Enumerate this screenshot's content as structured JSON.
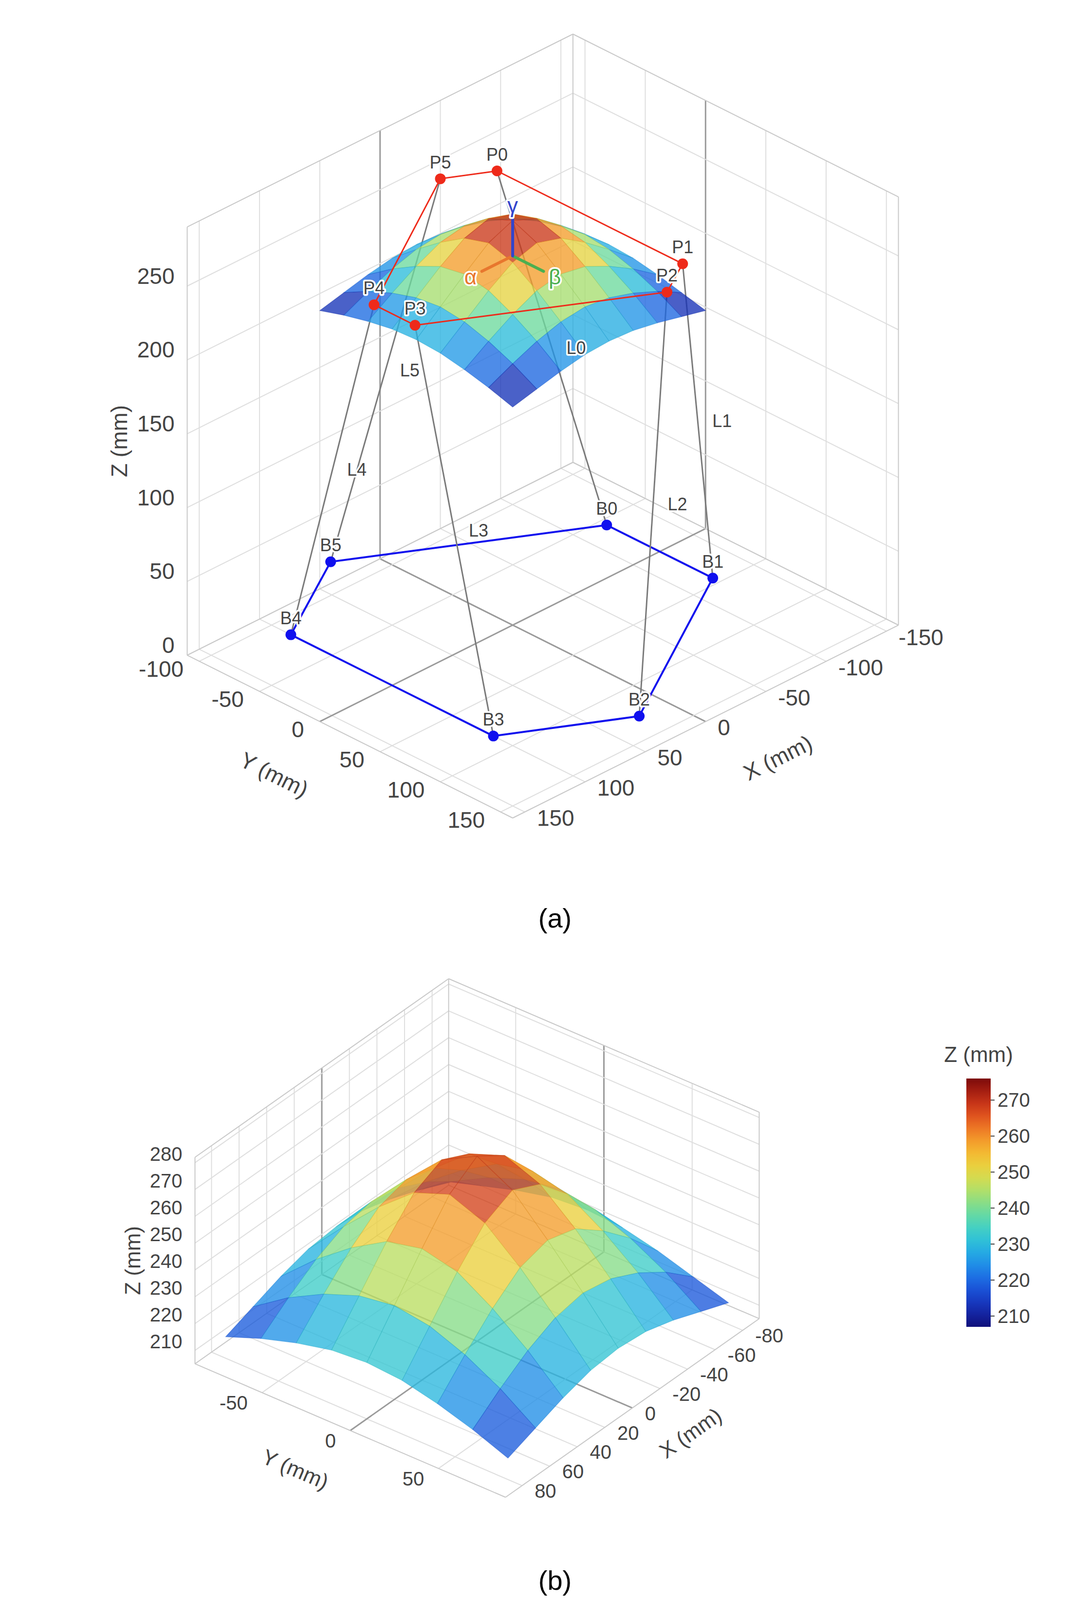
{
  "chart_data": [
    {
      "type": "surface3d",
      "title": "(a)",
      "x_label": "X (mm)",
      "y_label": "Y (mm)",
      "z_label": "Z (mm)",
      "xlim": [
        -160,
        160
      ],
      "ylim": [
        -110,
        160
      ],
      "zlim": [
        0,
        290
      ],
      "xticks": [
        -150,
        -100,
        -50,
        0,
        50,
        100,
        150
      ],
      "yticks": [
        -100,
        -50,
        0,
        50,
        100,
        150
      ],
      "zticks": [
        0,
        50,
        100,
        150,
        200,
        250
      ],
      "grid": true,
      "surface": {
        "x": [
          -80,
          -60,
          -40,
          -20,
          0,
          20,
          40,
          60,
          80
        ],
        "y": [
          -80,
          -60,
          -40,
          -20,
          0,
          20,
          40,
          60,
          80
        ],
        "z": [
          [
            213,
            217,
            221,
            224,
            225,
            224,
            221,
            217,
            213
          ],
          [
            217,
            226,
            233,
            238,
            240,
            238,
            233,
            226,
            218
          ],
          [
            221,
            233,
            243,
            251,
            254,
            251,
            243,
            233,
            222
          ],
          [
            224,
            238,
            251,
            262,
            267,
            262,
            251,
            238,
            225
          ],
          [
            225,
            240,
            254,
            267,
            274,
            267,
            254,
            240,
            226
          ],
          [
            224,
            238,
            251,
            262,
            267,
            262,
            251,
            238,
            225
          ],
          [
            221,
            233,
            243,
            251,
            254,
            251,
            243,
            233,
            222
          ],
          [
            217,
            226,
            233,
            238,
            240,
            238,
            233,
            226,
            218
          ],
          [
            213,
            217,
            221,
            224,
            225,
            224,
            221,
            217,
            213
          ]
        ]
      },
      "base_points": {
        "labels": [
          "B0",
          "B1",
          "B2",
          "B3",
          "B4",
          "B5"
        ],
        "x": [
          -122,
          -122,
          23,
          100,
          100,
          23
        ],
        "y": [
          -44,
          44,
          128,
          84,
          -84,
          -128
        ],
        "z": [
          0,
          0,
          0,
          0,
          0,
          0
        ],
        "color": "#1010ee"
      },
      "platform_points": {
        "labels": [
          "P0",
          "P1",
          "P2",
          "P3",
          "P4",
          "P5"
        ],
        "x": [
          -64,
          -64,
          -34,
          98,
          98,
          -34
        ],
        "y": [
          -77,
          77,
          94,
          17,
          -17,
          -94
        ],
        "z": [
          250,
          250,
          250,
          250,
          250,
          250
        ],
        "color": "#ee2a1a"
      },
      "legs": {
        "labels": [
          "L0",
          "L1",
          "L2",
          "L3",
          "L4",
          "L5"
        ],
        "color": "#7a7a7a"
      },
      "frame_axes": [
        {
          "label": "α",
          "color": "#e8772e"
        },
        {
          "label": "β",
          "color": "#4caf50"
        },
        {
          "label": "γ",
          "color": "#3344cc"
        }
      ]
    },
    {
      "type": "surface3d",
      "title": "(b)",
      "x_label": "X (mm)",
      "y_label": "Y (mm)",
      "z_label": "Z (mm)",
      "xlim": [
        -92,
        92
      ],
      "ylim": [
        -88,
        88
      ],
      "zlim": [
        205,
        282
      ],
      "xticks": [
        -80,
        -60,
        -40,
        -20,
        0,
        20,
        40,
        60,
        80
      ],
      "yticks": [
        -50,
        0,
        50
      ],
      "zticks": [
        210,
        220,
        230,
        240,
        250,
        260,
        270,
        280
      ],
      "grid": true,
      "surface": {
        "x": [
          -80,
          -60,
          -40,
          -20,
          0,
          20,
          40,
          60,
          80
        ],
        "y": [
          -80,
          -60,
          -40,
          -20,
          0,
          20,
          40,
          60,
          80
        ],
        "z": [
          [
            213,
            217,
            221,
            224,
            225,
            224,
            221,
            217,
            213
          ],
          [
            217,
            226,
            233,
            238,
            240,
            238,
            233,
            226,
            218
          ],
          [
            221,
            233,
            243,
            251,
            254,
            251,
            243,
            233,
            222
          ],
          [
            224,
            238,
            251,
            262,
            267,
            262,
            251,
            238,
            225
          ],
          [
            225,
            240,
            254,
            267,
            274,
            267,
            254,
            240,
            226
          ],
          [
            224,
            238,
            251,
            262,
            267,
            262,
            251,
            238,
            225
          ],
          [
            221,
            233,
            243,
            251,
            254,
            251,
            243,
            233,
            222
          ],
          [
            217,
            226,
            233,
            238,
            240,
            238,
            233,
            226,
            218
          ],
          [
            213,
            217,
            221,
            224,
            225,
            224,
            221,
            217,
            213
          ]
        ]
      },
      "colorbar": {
        "title": "Z (mm)",
        "range": [
          207,
          276
        ],
        "ticks": [
          210,
          220,
          230,
          240,
          250,
          260,
          270
        ]
      }
    }
  ]
}
